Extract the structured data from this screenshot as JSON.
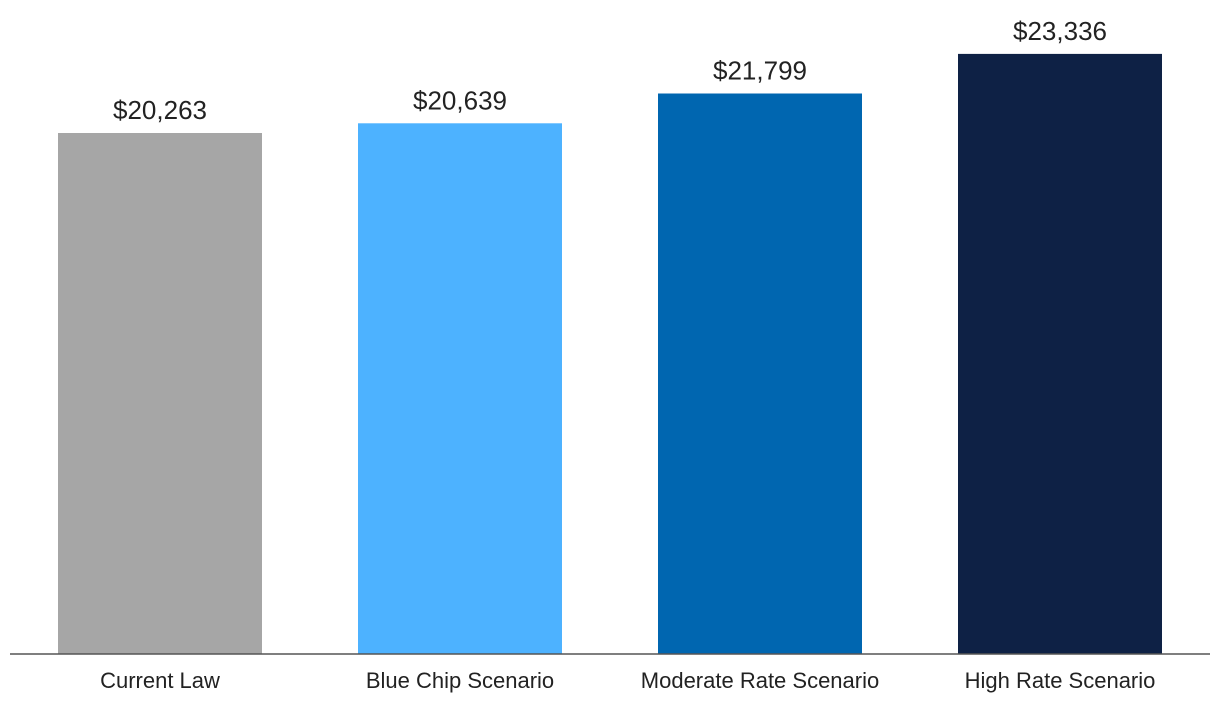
{
  "chart_data": {
    "type": "bar",
    "categories": [
      "Current Law",
      "Blue Chip Scenario",
      "Moderate Rate Scenario",
      "High Rate Scenario"
    ],
    "values": [
      20263,
      20639,
      21799,
      23336
    ],
    "value_labels": [
      "$20,263",
      "$20,639",
      "$21,799",
      "$23,336"
    ],
    "colors": [
      "#a6a6a6",
      "#4db2ff",
      "#0066b0",
      "#0e2145"
    ],
    "title": "",
    "xlabel": "",
    "ylabel": "",
    "ylim": [
      0,
      24500
    ],
    "grid": false,
    "legend": "none"
  }
}
